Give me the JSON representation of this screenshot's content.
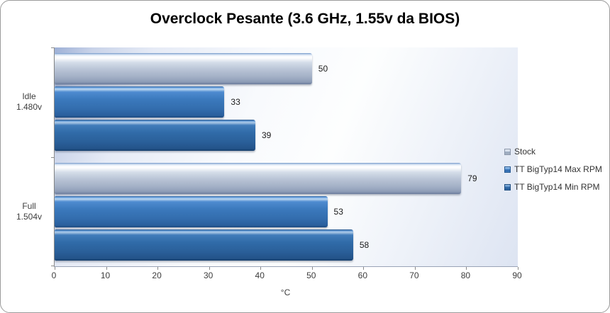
{
  "chart_data": {
    "type": "bar",
    "orientation": "horizontal",
    "title": "Overclock Pesante (3.6 GHz, 1.55v da BIOS)",
    "categories": [
      {
        "label": "Idle",
        "sub": "1.480v"
      },
      {
        "label": "Full",
        "sub": "1.504v"
      }
    ],
    "series": [
      {
        "name": "Stock",
        "color": "#b6c2d8",
        "values": [
          50,
          79
        ]
      },
      {
        "name": "TT BigTyp14 Max RPM",
        "color": "#3a78bc",
        "values": [
          33,
          53
        ]
      },
      {
        "name": "TT BigTyp14 Min RPM",
        "color": "#2f6aa8",
        "values": [
          39,
          58
        ]
      }
    ],
    "xlabel": "°C",
    "xlim": [
      0,
      90
    ],
    "xticks": [
      0,
      10,
      20,
      30,
      40,
      50,
      60,
      70,
      80,
      90
    ],
    "legend_position": "right",
    "value_labels": true,
    "grid": false
  }
}
